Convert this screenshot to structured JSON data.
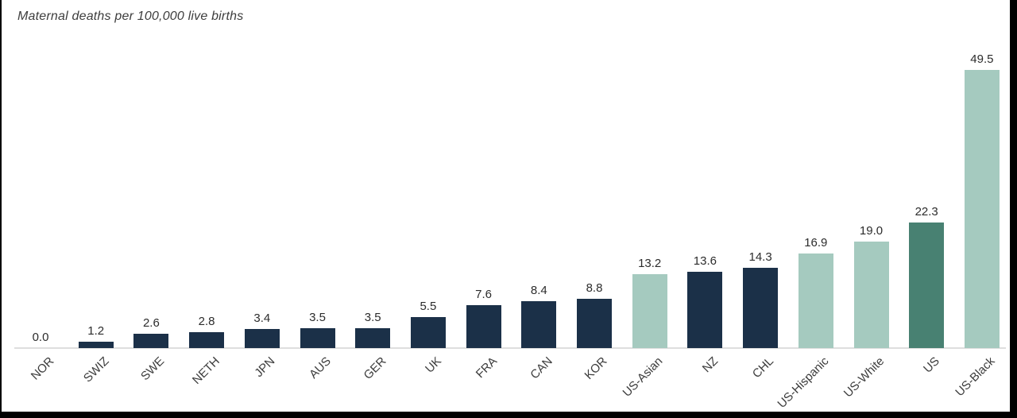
{
  "frame": {
    "border_color": "#000000",
    "background": "#ffffff"
  },
  "chart_data": {
    "type": "bar",
    "title": "Maternal deaths per 100,000 live births",
    "xlabel": "",
    "ylabel": "",
    "categories": [
      "NOR",
      "SWIZ",
      "SWE",
      "NETH",
      "JPN",
      "AUS",
      "GER",
      "UK",
      "FRA",
      "CAN",
      "KOR",
      "US-Asian",
      "NZ",
      "CHL",
      "US-Hispanic",
      "US-White",
      "US",
      "US-Black"
    ],
    "values": [
      0.0,
      1.2,
      2.6,
      2.8,
      3.4,
      3.5,
      3.5,
      5.5,
      7.6,
      8.4,
      8.8,
      13.2,
      13.6,
      14.3,
      16.9,
      19.0,
      22.3,
      49.5
    ],
    "value_format": "fixed1",
    "color_keys": [
      "country",
      "country",
      "country",
      "country",
      "country",
      "country",
      "country",
      "country",
      "country",
      "country",
      "country",
      "us_group",
      "country",
      "country",
      "us_group",
      "us_group",
      "us_overall",
      "us_group"
    ],
    "colors": {
      "country": "#1b3048",
      "us_group": "#a5cabf",
      "us_overall": "#488172"
    },
    "axis": {
      "baseline_color": "#dedede"
    },
    "ylim": [
      0,
      50
    ],
    "grid": false,
    "legend": "none",
    "x_tick_rotation": 45,
    "bar_label_position": "above"
  }
}
